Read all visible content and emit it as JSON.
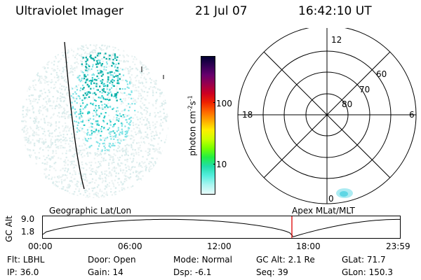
{
  "header": {
    "title": "Ultraviolet Imager",
    "date": "21 Jul 07",
    "time": "16:42:10 UT"
  },
  "colorbar": {
    "label_base": "photon cm",
    "label_exp1": "-2",
    "label_mid": "s",
    "label_exp2": "-1",
    "ticks": [
      "100",
      "10"
    ],
    "colors": [
      "#000033",
      "#330055",
      "#66006d",
      "#99004d",
      "#cc0022",
      "#ee2200",
      "#ff6600",
      "#ffaa00",
      "#ffee00",
      "#ccff00",
      "#77ff00",
      "#22ee44",
      "#22ddaa",
      "#55eedd",
      "#aaf5f0",
      "#e8fbfa"
    ]
  },
  "polar": {
    "mlt_labels": {
      "top": "12",
      "left": "18",
      "right": "6",
      "bottom": "0"
    },
    "lat_labels": [
      "60",
      "70",
      "80"
    ]
  },
  "timeline": {
    "ylabel": "GC Alt",
    "y_ticks": [
      "9.0",
      "1.8"
    ],
    "left_label": "Geographic Lat/Lon",
    "right_label": "Apex MLat/MLT",
    "x_ticks": [
      "00:00",
      "06:00",
      "12:00",
      "18:00",
      "23:59"
    ],
    "current_time_fraction": 0.696
  },
  "footer": {
    "row1": [
      {
        "key": "Flt:",
        "value": "LBHL"
      },
      {
        "key": "Door:",
        "value": "Open"
      },
      {
        "key": "Mode:",
        "value": "Normal"
      },
      {
        "key": "GC Alt:",
        "value": "2.1 Re"
      },
      {
        "key": "GLat:",
        "value": "71.7"
      }
    ],
    "row2": [
      {
        "key": "IP:",
        "value": "36.0"
      },
      {
        "key": "Gain:",
        "value": "14"
      },
      {
        "key": "Dsp:",
        "value": "-6.1"
      },
      {
        "key": "Seq:",
        "value": "39"
      },
      {
        "key": "GLon:",
        "value": "150.3"
      }
    ]
  }
}
